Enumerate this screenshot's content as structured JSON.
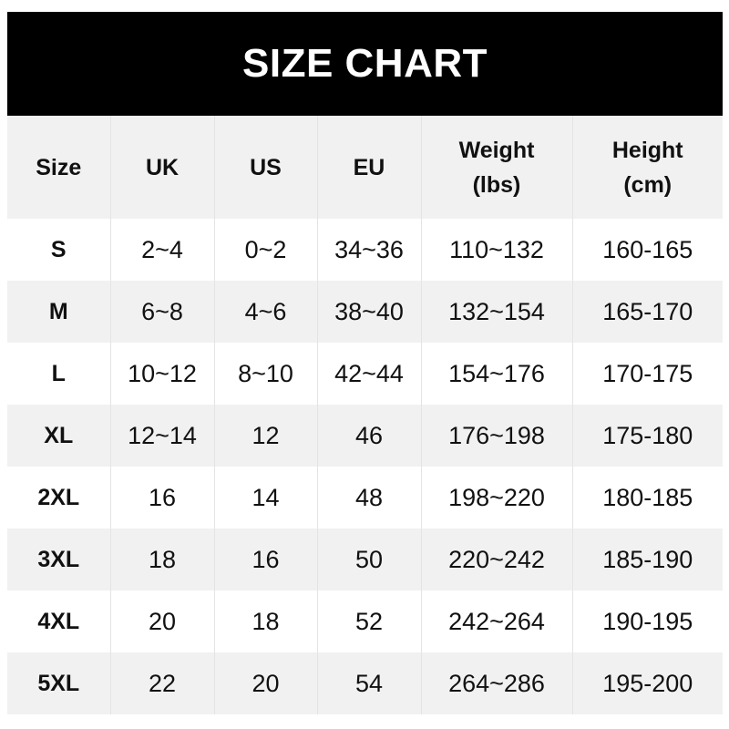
{
  "title": "SIZE CHART",
  "columns": [
    "Size",
    "UK",
    "US",
    "EU",
    "Weight\n(lbs)",
    "Height\n(cm)"
  ],
  "rows": [
    [
      "S",
      "2~4",
      "0~2",
      "34~36",
      "110~132",
      "160-165"
    ],
    [
      "M",
      "6~8",
      "4~6",
      "38~40",
      "132~154",
      "165-170"
    ],
    [
      "L",
      "10~12",
      "8~10",
      "42~44",
      "154~176",
      "170-175"
    ],
    [
      "XL",
      "12~14",
      "12",
      "46",
      "176~198",
      "175-180"
    ],
    [
      "2XL",
      "16",
      "14",
      "48",
      "198~220",
      "180-185"
    ],
    [
      "3XL",
      "18",
      "16",
      "50",
      "220~242",
      "185-190"
    ],
    [
      "4XL",
      "20",
      "18",
      "52",
      "242~264",
      "190-195"
    ],
    [
      "5XL",
      "22",
      "20",
      "54",
      "264~286",
      "195-200"
    ]
  ]
}
